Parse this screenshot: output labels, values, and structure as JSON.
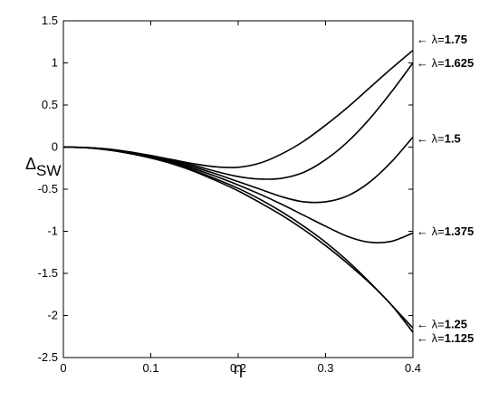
{
  "chart_data": {
    "type": "line",
    "title": "",
    "xlabel": "η",
    "ylabel": "Δ",
    "ylabel_subscript": "SW",
    "xlim": [
      0,
      0.4
    ],
    "ylim": [
      -2.5,
      1.5
    ],
    "xticks": [
      0,
      0.1,
      0.2,
      0.3,
      0.4
    ],
    "xtick_labels": [
      "0",
      "0.1",
      "0.2",
      "0.3",
      "0.4"
    ],
    "yticks": [
      -2.5,
      -2,
      -1.5,
      -1,
      -0.5,
      0,
      0.5,
      1,
      1.5
    ],
    "ytick_labels": [
      "-2.5",
      "-2",
      "-1.5",
      "-1",
      "-0.5",
      "0",
      "0.5",
      "1",
      "1.5"
    ],
    "grid": false,
    "legend": "none",
    "line_color": "#000000",
    "series": [
      {
        "name": "λ=1.75",
        "label_arrow": "←",
        "label_symbol": "λ=",
        "label_value": "1.75",
        "label_y": 1.28,
        "x": [
          0,
          0.025,
          0.05,
          0.075,
          0.1,
          0.125,
          0.15,
          0.175,
          0.2,
          0.225,
          0.25,
          0.275,
          0.3,
          0.325,
          0.35,
          0.375,
          0.4
        ],
        "y": [
          0,
          -0.005,
          -0.022,
          -0.055,
          -0.1,
          -0.15,
          -0.2,
          -0.235,
          -0.24,
          -0.19,
          -0.08,
          0.07,
          0.26,
          0.47,
          0.7,
          0.93,
          1.15
        ]
      },
      {
        "name": "λ=1.625",
        "label_arrow": "←",
        "label_symbol": "λ=",
        "label_value": "1.625",
        "label_y": 1.0,
        "x": [
          0,
          0.025,
          0.05,
          0.075,
          0.1,
          0.125,
          0.15,
          0.175,
          0.2,
          0.225,
          0.25,
          0.275,
          0.3,
          0.325,
          0.35,
          0.375,
          0.4
        ],
        "y": [
          0,
          -0.005,
          -0.024,
          -0.058,
          -0.105,
          -0.16,
          -0.22,
          -0.29,
          -0.35,
          -0.38,
          -0.37,
          -0.3,
          -0.15,
          0.06,
          0.33,
          0.65,
          1.0
        ]
      },
      {
        "name": "λ=1.5",
        "label_arrow": "←",
        "label_symbol": "λ=",
        "label_value": "1.5",
        "label_y": 0.1,
        "x": [
          0,
          0.025,
          0.05,
          0.075,
          0.1,
          0.125,
          0.15,
          0.175,
          0.2,
          0.225,
          0.25,
          0.275,
          0.3,
          0.325,
          0.35,
          0.375,
          0.4
        ],
        "y": [
          0,
          -0.005,
          -0.025,
          -0.06,
          -0.11,
          -0.17,
          -0.24,
          -0.32,
          -0.41,
          -0.5,
          -0.59,
          -0.65,
          -0.65,
          -0.58,
          -0.42,
          -0.18,
          0.12
        ]
      },
      {
        "name": "λ=1.375",
        "label_arrow": "←",
        "label_symbol": "λ=",
        "label_value": "1.375",
        "label_y": -1.0,
        "x": [
          0,
          0.025,
          0.05,
          0.075,
          0.1,
          0.125,
          0.15,
          0.175,
          0.2,
          0.225,
          0.25,
          0.275,
          0.3,
          0.325,
          0.35,
          0.375,
          0.4
        ],
        "y": [
          0,
          -0.006,
          -0.027,
          -0.063,
          -0.115,
          -0.18,
          -0.26,
          -0.35,
          -0.45,
          -0.56,
          -0.68,
          -0.81,
          -0.94,
          -1.06,
          -1.13,
          -1.12,
          -1.02
        ]
      },
      {
        "name": "λ=1.25",
        "label_arrow": "←",
        "label_symbol": "λ=",
        "label_value": "1.25",
        "label_y": -2.1,
        "x": [
          0,
          0.025,
          0.05,
          0.075,
          0.1,
          0.125,
          0.15,
          0.175,
          0.2,
          0.225,
          0.25,
          0.275,
          0.3,
          0.325,
          0.35,
          0.375,
          0.4
        ],
        "y": [
          0,
          -0.006,
          -0.028,
          -0.066,
          -0.12,
          -0.19,
          -0.28,
          -0.38,
          -0.49,
          -0.62,
          -0.77,
          -0.94,
          -1.13,
          -1.35,
          -1.6,
          -1.87,
          -2.15
        ]
      },
      {
        "name": "λ=1.125",
        "label_arrow": "←",
        "label_symbol": "λ=",
        "label_value": "1.125",
        "label_y": -2.27,
        "x": [
          0,
          0.025,
          0.05,
          0.075,
          0.1,
          0.125,
          0.15,
          0.175,
          0.2,
          0.225,
          0.25,
          0.275,
          0.3,
          0.325,
          0.35,
          0.375,
          0.4
        ],
        "y": [
          0,
          -0.008,
          -0.033,
          -0.075,
          -0.13,
          -0.2,
          -0.29,
          -0.4,
          -0.52,
          -0.66,
          -0.81,
          -0.98,
          -1.17,
          -1.38,
          -1.61,
          -1.87,
          -2.2
        ]
      }
    ]
  }
}
